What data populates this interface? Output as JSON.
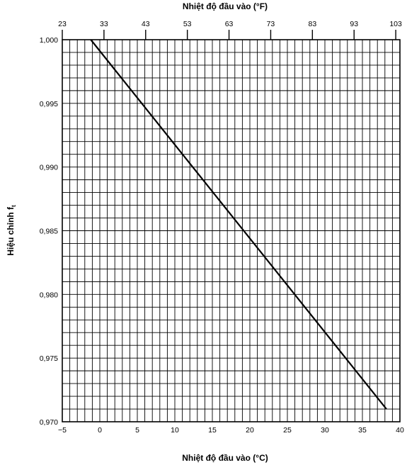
{
  "chart_data": {
    "type": "line",
    "title": "",
    "xlabel": "Nhiệt độ đầu vào (°C)",
    "x2label": "Nhiệt độ đầu vào (°F)",
    "ylabel_main": "Hiệu chỉnh f",
    "ylabel_sub": "t",
    "xlim": [
      -5,
      40
    ],
    "x2lim": [
      23,
      104
    ],
    "ylim": [
      0.97,
      1.0
    ],
    "x_ticks": [
      -5,
      0,
      5,
      10,
      15,
      20,
      25,
      30,
      35,
      40
    ],
    "x_tick_labels": [
      "−5",
      "0",
      "5",
      "10",
      "15",
      "20",
      "25",
      "30",
      "35",
      "40"
    ],
    "x2_ticks": [
      23,
      33,
      43,
      53,
      63,
      73,
      83,
      93,
      103
    ],
    "x2_tick_labels": [
      "23",
      "33",
      "43",
      "53",
      "63",
      "73",
      "83",
      "93",
      "103"
    ],
    "y_ticks": [
      0.97,
      0.975,
      0.98,
      0.985,
      0.99,
      0.995,
      1.0
    ],
    "y_tick_labels": [
      "0,970",
      "0,975",
      "0,980",
      "0,985",
      "0,990",
      "0,995",
      "1,000"
    ],
    "grid": true,
    "series": [
      {
        "x": [
          -1.2,
          38.2
        ],
        "y": [
          1.0,
          0.971
        ]
      }
    ]
  }
}
